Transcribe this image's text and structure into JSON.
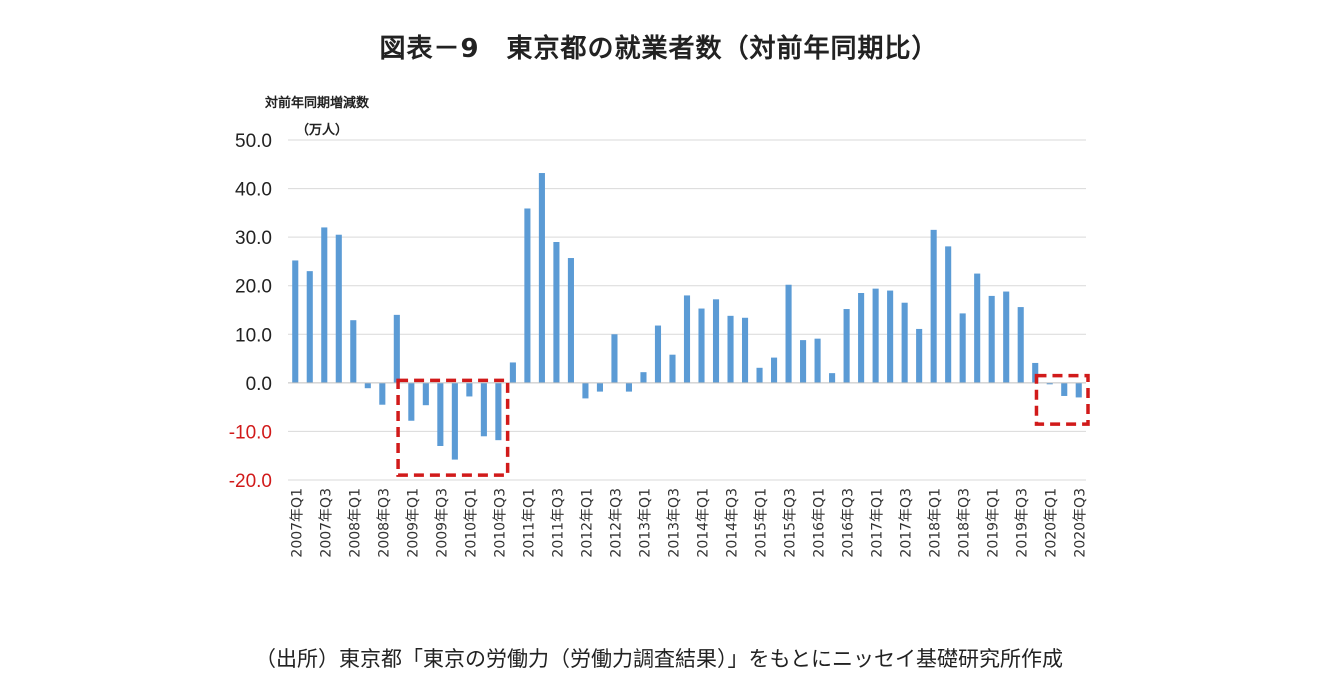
{
  "title": "図表－9　東京都の就業者数（対前年同期比）",
  "ylabel_line1": "対前年同期増減数",
  "ylabel_line2": "（万人）",
  "source": "（出所）東京都「東京の労働力（労働力調査結果）」をもとにニッセイ基礎研究所作成",
  "colors": {
    "bar": "#5B9BD5",
    "grid": "#d9d9d9",
    "highlight": "#d11a1a",
    "negative_tick": "#d11a1a"
  },
  "chart_data": {
    "type": "bar",
    "ylim": [
      -20,
      50
    ],
    "yticks": [
      "50.0",
      "40.0",
      "30.0",
      "20.0",
      "10.0",
      "0.0",
      "-10.0",
      "-20.0"
    ],
    "yticks_values": [
      50,
      40,
      30,
      20,
      10,
      0,
      -10,
      -20
    ],
    "grid": true,
    "categories": [
      "2007年Q1",
      "2007年Q2",
      "2007年Q3",
      "2007年Q4",
      "2008年Q1",
      "2008年Q2",
      "2008年Q3",
      "2008年Q4",
      "2009年Q1",
      "2009年Q2",
      "2009年Q3",
      "2009年Q4",
      "2010年Q1",
      "2010年Q2",
      "2010年Q3",
      "2010年Q4",
      "2011年Q1",
      "2011年Q2",
      "2011年Q3",
      "2011年Q4",
      "2012年Q1",
      "2012年Q2",
      "2012年Q3",
      "2012年Q4",
      "2013年Q1",
      "2013年Q2",
      "2013年Q3",
      "2013年Q4",
      "2014年Q1",
      "2014年Q2",
      "2014年Q3",
      "2014年Q4",
      "2015年Q1",
      "2015年Q2",
      "2015年Q3",
      "2015年Q4",
      "2016年Q1",
      "2016年Q2",
      "2016年Q3",
      "2016年Q4",
      "2017年Q1",
      "2017年Q2",
      "2017年Q3",
      "2017年Q4",
      "2018年Q1",
      "2018年Q2",
      "2018年Q3",
      "2018年Q4",
      "2019年Q1",
      "2019年Q2",
      "2019年Q3",
      "2019年Q4",
      "2020年Q1",
      "2020年Q2",
      "2020年Q3"
    ],
    "x_tick_labels": [
      "2007年Q1",
      "",
      "2007年Q3",
      "",
      "2008年Q1",
      "",
      "2008年Q3",
      "",
      "2009年Q1",
      "",
      "2009年Q3",
      "",
      "2010年Q1",
      "",
      "2010年Q3",
      "",
      "2011年Q1",
      "",
      "2011年Q3",
      "",
      "2012年Q1",
      "",
      "2012年Q3",
      "",
      "2013年Q1",
      "",
      "2013年Q3",
      "",
      "2014年Q1",
      "",
      "2014年Q3",
      "",
      "2015年Q1",
      "",
      "2015年Q3",
      "",
      "2016年Q1",
      "",
      "2016年Q3",
      "",
      "2017年Q1",
      "",
      "2017年Q3",
      "",
      "2018年Q1",
      "",
      "2018年Q3",
      "",
      "2019年Q1",
      "",
      "2019年Q3",
      "",
      "2020年Q1",
      "",
      "2020年Q3"
    ],
    "values": [
      25.2,
      23.0,
      32.0,
      30.5,
      12.9,
      -1.1,
      -4.5,
      14.0,
      -7.8,
      -4.6,
      -13.0,
      -15.8,
      -2.8,
      -11.0,
      -11.8,
      4.2,
      35.9,
      43.2,
      29.0,
      25.7,
      -3.2,
      -1.8,
      10.0,
      -1.8,
      2.2,
      11.8,
      5.8,
      18.0,
      15.3,
      17.2,
      13.8,
      13.4,
      3.1,
      5.2,
      20.2,
      8.8,
      9.1,
      2.0,
      15.2,
      18.5,
      19.4,
      19.0,
      16.5,
      11.1,
      31.5,
      28.1,
      14.3,
      22.5,
      17.9,
      18.8,
      15.6,
      4.1,
      -0.3,
      -2.7,
      -3.0
    ],
    "highlights": [
      {
        "from": "2009年Q1",
        "to": "2010年Q3",
        "ymin": -19,
        "ymax": 0.5
      },
      {
        "from": "2020年Q1",
        "to": "2020年Q3",
        "ymin": -8.5,
        "ymax": 1.5
      }
    ]
  }
}
